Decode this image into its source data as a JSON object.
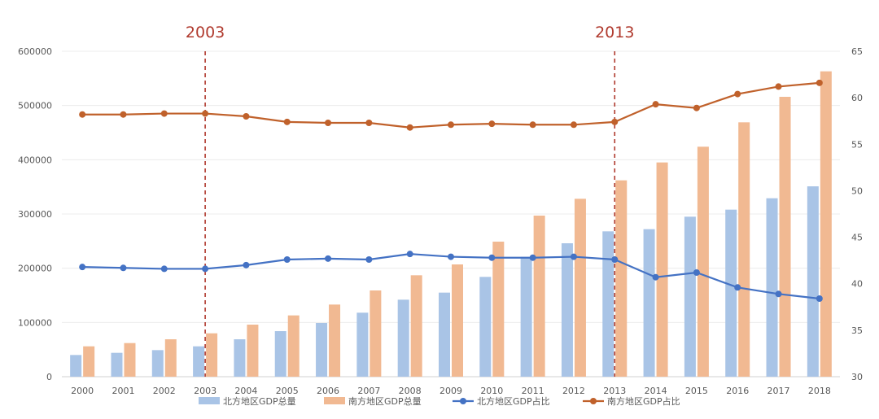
{
  "chart_data": {
    "type": "bar",
    "categories": [
      "2000",
      "2001",
      "2002",
      "2003",
      "2004",
      "2005",
      "2006",
      "2007",
      "2008",
      "2009",
      "2010",
      "2011",
      "2012",
      "2013",
      "2014",
      "2015",
      "2016",
      "2017",
      "2018"
    ],
    "series": [
      {
        "name": "北方地区GDP总量",
        "type": "bar",
        "axis": "left",
        "color": "#a9c4e6",
        "values": [
          40000,
          44000,
          49000,
          56000,
          69000,
          84000,
          99000,
          118000,
          142000,
          155000,
          184000,
          221000,
          246000,
          268000,
          272000,
          295000,
          308000,
          329000,
          351000
        ]
      },
      {
        "name": "南方地区GDP总量",
        "type": "bar",
        "axis": "left",
        "color": "#f1b992",
        "values": [
          56000,
          62000,
          69000,
          80000,
          96000,
          113000,
          133000,
          159000,
          187000,
          207000,
          249000,
          297000,
          328000,
          362000,
          395000,
          424000,
          469000,
          516000,
          563000
        ]
      },
      {
        "name": "北方地区GDP占比",
        "type": "line",
        "axis": "right",
        "color": "#4472c4",
        "values": [
          41.8,
          41.7,
          41.6,
          41.6,
          42.0,
          42.6,
          42.7,
          42.6,
          43.2,
          42.9,
          42.8,
          42.8,
          42.9,
          42.6,
          40.7,
          41.2,
          39.6,
          38.9,
          38.4
        ]
      },
      {
        "name": "南方地区GDP占比",
        "type": "line",
        "axis": "right",
        "color": "#c0612b",
        "values": [
          58.2,
          58.2,
          58.3,
          58.3,
          58.0,
          57.4,
          57.3,
          57.3,
          56.8,
          57.1,
          57.2,
          57.1,
          57.1,
          57.4,
          59.3,
          58.9,
          60.4,
          61.2,
          61.6
        ]
      }
    ],
    "y_left": {
      "ticks": [
        "0",
        "100000",
        "200000",
        "300000",
        "400000",
        "500000",
        "600000"
      ],
      "lim": [
        0,
        600000
      ]
    },
    "y_right": {
      "ticks": [
        "30",
        "35",
        "40",
        "45",
        "50",
        "55",
        "60",
        "65"
      ],
      "lim": [
        30,
        65
      ]
    },
    "annotations": [
      {
        "label": "2003",
        "category": "2003",
        "color": "#b03a2e",
        "style": "dashed"
      },
      {
        "label": "2013",
        "category": "2013",
        "color": "#b03a2e",
        "style": "dashed"
      }
    ],
    "grid": true,
    "legend_position": "bottom"
  }
}
